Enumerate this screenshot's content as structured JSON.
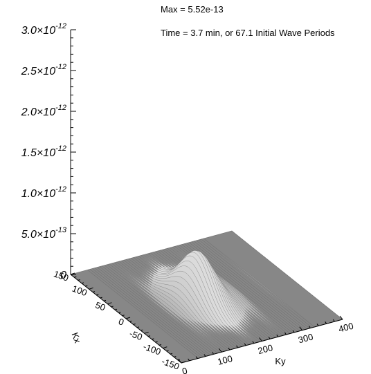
{
  "chart_data": {
    "type": "surface",
    "annotations": {
      "max": "Max = 5.52e-13",
      "time": "Time =  3.7 min, or  67.1 Initial Wave Periods"
    },
    "z_axis": {
      "range": [
        0,
        3e-12
      ],
      "ticks": [
        {
          "value": 0,
          "mant": "0",
          "exp": ""
        },
        {
          "value": 5e-13,
          "mant": "5.0×10",
          "exp": "-13"
        },
        {
          "value": 1e-12,
          "mant": "1.0×10",
          "exp": "-12"
        },
        {
          "value": 1.5e-12,
          "mant": "1.5×10",
          "exp": "-12"
        },
        {
          "value": 2e-12,
          "mant": "2.0×10",
          "exp": "-12"
        },
        {
          "value": 2.5e-12,
          "mant": "2.5×10",
          "exp": "-12"
        },
        {
          "value": 3e-12,
          "mant": "3.0×10",
          "exp": "-12"
        }
      ]
    },
    "x_axis": {
      "label": "Kx",
      "range": [
        -150,
        150
      ],
      "ticks": [
        "150",
        "100",
        "50",
        "0",
        "-50",
        "-100",
        "-150"
      ],
      "tick_values": [
        150,
        100,
        50,
        0,
        -50,
        -100,
        -150
      ]
    },
    "y_axis": {
      "label": "Ky",
      "range": [
        0,
        400
      ],
      "ticks": [
        "0",
        "100",
        "200",
        "300",
        "400"
      ],
      "tick_values": [
        0,
        100,
        200,
        300,
        400
      ]
    },
    "surface": {
      "peak_z": 5.52e-13,
      "peak_kx": 0,
      "peak_ky": 180,
      "color": "#8a8a8a"
    }
  }
}
